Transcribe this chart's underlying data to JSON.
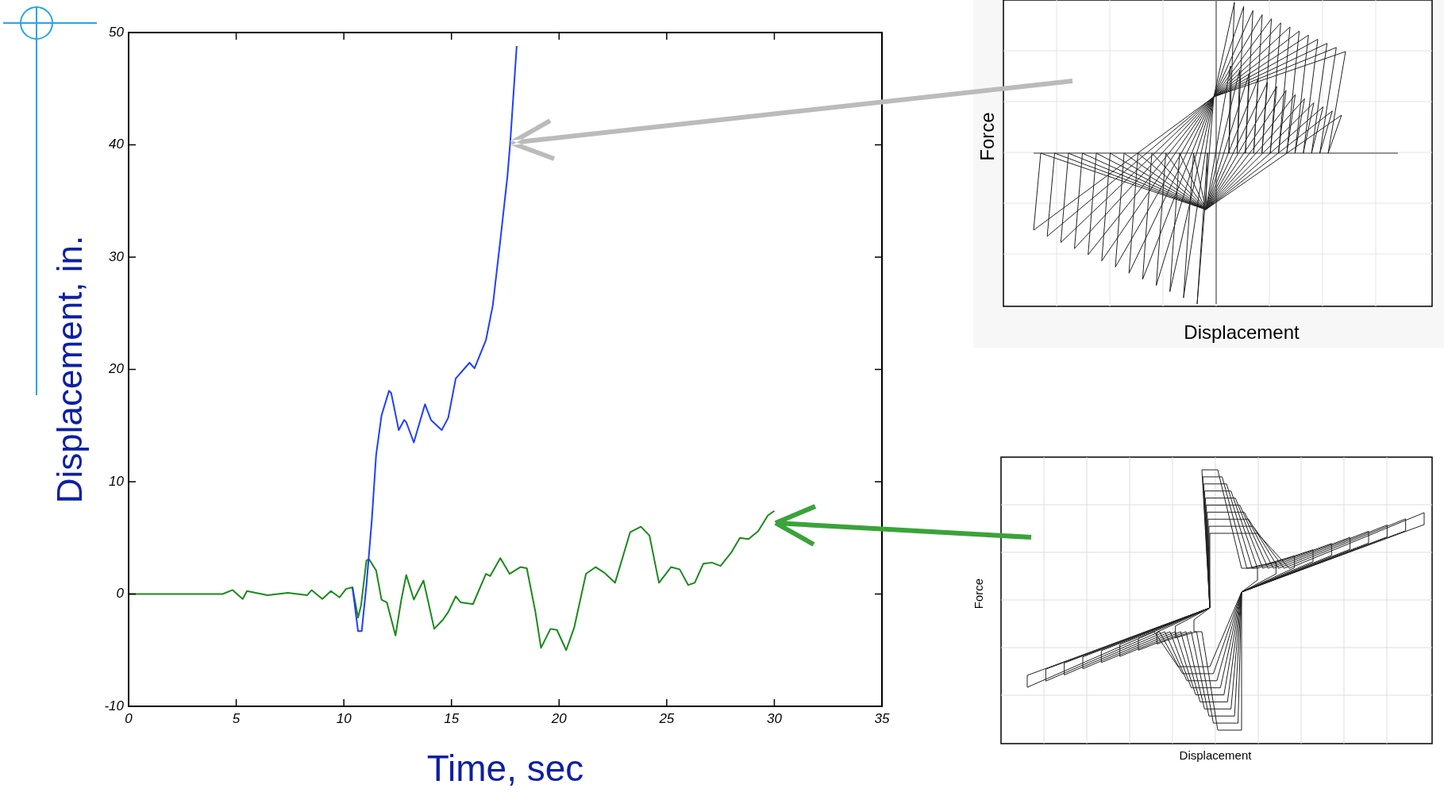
{
  "chart_data": {
    "type": "line",
    "xlabel": "Time, sec",
    "ylabel": "Displacement, in.",
    "xlim": [
      0,
      35
    ],
    "xticks": [
      0,
      5,
      10,
      15,
      20,
      25,
      30,
      35
    ],
    "ylim": [
      -10,
      50
    ],
    "yticks": [
      -10,
      0,
      10,
      20,
      30,
      40,
      50
    ],
    "grid": false,
    "legend": false,
    "marker": "none",
    "line_style": "solid",
    "annotations": [
      "Force",
      "Displacement",
      "Force",
      "Displacement"
    ],
    "series": [
      {
        "color": "#1f3fff",
        "x": [
          10.4,
          10.66,
          10.83,
          11.05,
          11.3,
          11.5,
          11.75,
          12.1,
          12.2,
          12.55,
          12.8,
          12.9,
          13.25,
          13.77,
          14.05,
          14.55,
          14.85,
          15.2,
          15.84,
          16.07,
          16.6,
          16.92,
          17.27,
          17.6,
          17.73,
          18.03
        ],
        "values": [
          0.6,
          -3.3,
          -3.3,
          0.8,
          6.6,
          12.4,
          15.9,
          18.1,
          17.9,
          14.6,
          15.5,
          15.3,
          13.5,
          16.9,
          15.5,
          14.6,
          15.7,
          19.2,
          20.6,
          20.1,
          22.6,
          25.7,
          31.5,
          37.2,
          40.2,
          48.8
        ]
      },
      {
        "color": "#1a8a1a",
        "x": [
          0,
          4.37,
          4.83,
          5.3,
          5.5,
          6.45,
          7.4,
          8.3,
          8.5,
          9.0,
          9.4,
          9.8,
          10.1,
          10.4,
          10.66,
          10.8,
          11.05,
          11.17,
          11.5,
          11.75,
          12.0,
          12.4,
          12.67,
          12.9,
          13.25,
          13.7,
          14.2,
          14.6,
          14.85,
          15.2,
          15.43,
          16.0,
          16.6,
          16.8,
          17.27,
          17.7,
          18.2,
          18.5,
          18.9,
          19.16,
          19.6,
          19.9,
          20.33,
          20.7,
          21.25,
          21.7,
          22.1,
          22.6,
          23.3,
          23.8,
          24.2,
          24.64,
          25.2,
          25.6,
          26.0,
          26.3,
          26.7,
          27.1,
          27.5,
          28.0,
          28.4,
          28.8,
          29.25,
          29.7,
          30.0
        ],
        "values": [
          0,
          0,
          0.36,
          -0.44,
          0.27,
          -0.1,
          0.1,
          -0.1,
          0.35,
          -0.44,
          0.27,
          -0.3,
          0.45,
          0.6,
          -2.1,
          -1.0,
          3.0,
          3.1,
          2.1,
          -0.5,
          -0.75,
          -3.7,
          -0.5,
          1.7,
          -0.5,
          1.2,
          -3.1,
          -2.3,
          -1.6,
          -0.2,
          -0.75,
          -0.9,
          1.8,
          1.6,
          3.2,
          1.8,
          2.4,
          2.3,
          -1.6,
          -4.8,
          -3.1,
          -3.2,
          -5.0,
          -3.0,
          1.8,
          2.4,
          1.9,
          1.0,
          5.5,
          6.0,
          5.2,
          1.0,
          2.4,
          2.2,
          0.8,
          1.0,
          2.7,
          2.8,
          2.5,
          3.7,
          5.0,
          4.9,
          5.6,
          7.0,
          7.4
        ]
      }
    ]
  }
}
